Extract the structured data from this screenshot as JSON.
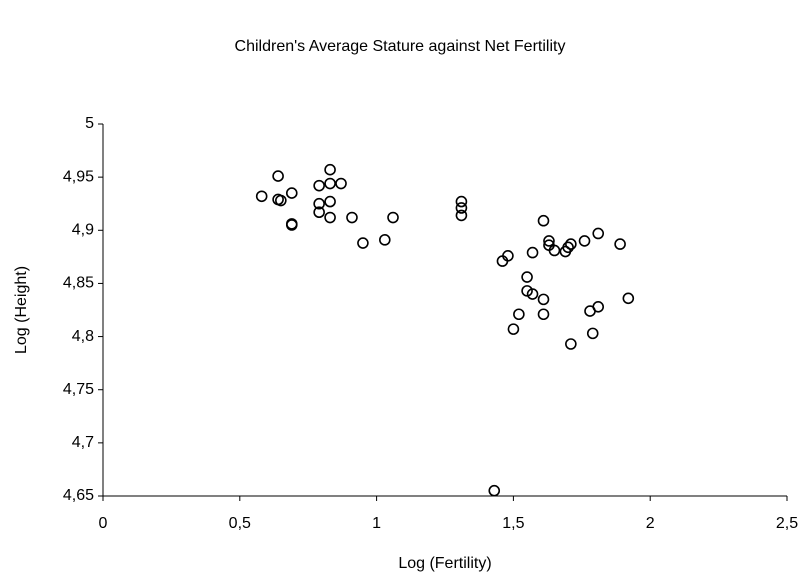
{
  "chart_data": {
    "type": "scatter",
    "title": "Children's Average Stature against Net Fertility",
    "x_label": "Log (Fertility)",
    "y_label": "Log (Height)",
    "marker": "open-circle",
    "color": "#000000",
    "grid": false,
    "xlim": [
      0,
      2.5
    ],
    "xticks": [
      0,
      {
        "value": 0.5,
        "label": "0,5"
      },
      1,
      {
        "value": 1.5,
        "label": "1,5"
      },
      2,
      {
        "value": 2.5,
        "label": "2,5"
      }
    ],
    "ylim": [
      4.65,
      5
    ],
    "yticks": [
      {
        "value": 4.65,
        "label": "4,65"
      },
      {
        "value": 4.7,
        "label": "4,7"
      },
      {
        "value": 4.75,
        "label": "4,75"
      },
      {
        "value": 4.8,
        "label": "4,8"
      },
      {
        "value": 4.85,
        "label": "4,85"
      },
      {
        "value": 4.9,
        "label": "4,9"
      },
      {
        "value": 4.95,
        "label": "4,95"
      },
      5
    ],
    "x": [
      0.58,
      0.64,
      0.64,
      0.65,
      0.69,
      0.69,
      0.69,
      0.79,
      0.79,
      0.79,
      0.83,
      0.83,
      0.83,
      0.83,
      0.87,
      0.91,
      0.95,
      1.03,
      1.06,
      1.31,
      1.31,
      1.31,
      1.43,
      1.46,
      1.48,
      1.5,
      1.52,
      1.55,
      1.55,
      1.57,
      1.57,
      1.61,
      1.61,
      1.61,
      1.63,
      1.63,
      1.65,
      1.69,
      1.7,
      1.71,
      1.76,
      1.78,
      1.79,
      1.81,
      1.81,
      1.71,
      1.89,
      1.92
    ],
    "values": [
      4.932,
      4.951,
      4.929,
      4.928,
      4.935,
      4.905,
      4.906,
      4.942,
      4.925,
      4.917,
      4.957,
      4.944,
      4.927,
      4.912,
      4.944,
      4.912,
      4.888,
      4.891,
      4.912,
      4.927,
      4.921,
      4.914,
      4.655,
      4.871,
      4.876,
      4.807,
      4.821,
      4.856,
      4.843,
      4.879,
      4.84,
      4.909,
      4.835,
      4.821,
      4.89,
      4.886,
      4.881,
      4.88,
      4.884,
      4.887,
      4.89,
      4.824,
      4.803,
      4.897,
      4.828,
      4.793,
      4.887,
      4.836
    ]
  }
}
